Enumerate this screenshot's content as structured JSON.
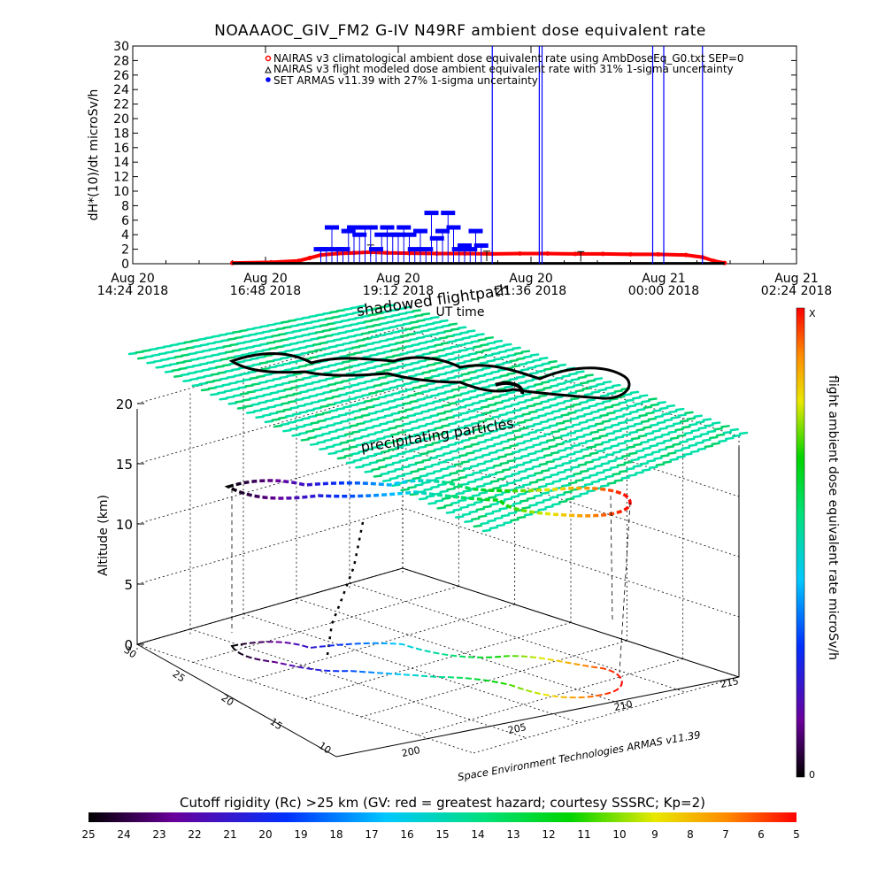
{
  "title": "NOAAAOC_GIV_FM2 G-IV    N49RF  ambient dose equivalent rate",
  "colors": {
    "nairas_clim": "#ff0000",
    "nairas_flight": "#000000",
    "armas": "#0000ff",
    "cloud": "#00e0a8"
  },
  "chart_data": [
    {
      "type": "line",
      "ylabel": "dH*(10)/dt microSv/h",
      "xlabel": "UT time",
      "ylim": [
        0,
        30
      ],
      "yticks": [
        0,
        2,
        4,
        6,
        8,
        10,
        12,
        14,
        16,
        18,
        20,
        22,
        24,
        26,
        28,
        30
      ],
      "xlim": [
        0,
        12
      ],
      "xticks": [
        {
          "x": 0,
          "line1": "Aug 20",
          "line2": "14:24 2018"
        },
        {
          "x": 2.4,
          "line1": "Aug 20",
          "line2": "16:48 2018"
        },
        {
          "x": 4.8,
          "line1": "Aug 20",
          "line2": "19:12 2018"
        },
        {
          "x": 7.2,
          "line1": "Aug 20",
          "line2": "21:36 2018"
        },
        {
          "x": 9.6,
          "line1": "Aug 21",
          "line2": "00:00 2018"
        },
        {
          "x": 12,
          "line1": "Aug 21",
          "line2": "02:24 2018"
        }
      ],
      "legend": [
        "NAIRAS v3 climatological ambient dose equivalent rate using AmbDoseEq_G0.txt SEP=0",
        "NAIRAS v3 flight modeled dose ambient equivalent rate with 31% 1-sigma uncertainty",
        "SET ARMAS v11.39 with 27% 1-sigma uncertainty"
      ],
      "series": [
        {
          "values_x": [
            1.8,
            2.5,
            3.0,
            3.2,
            3.4,
            3.7,
            4.0,
            4.3,
            4.6,
            5.0,
            5.5,
            6.0,
            6.5,
            7.0,
            7.5,
            8.0,
            8.5,
            9.0,
            9.5,
            10.0,
            10.3,
            10.5,
            10.7
          ],
          "values_y": [
            0.1,
            0.2,
            0.4,
            0.8,
            1.2,
            1.4,
            1.5,
            1.6,
            1.5,
            1.45,
            1.4,
            1.4,
            1.35,
            1.4,
            1.4,
            1.35,
            1.35,
            1.3,
            1.3,
            1.2,
            0.9,
            0.4,
            0.1
          ]
        },
        {
          "values_x": [
            1.8,
            3.0,
            4.0,
            5.0,
            6.0,
            7.0,
            8.0,
            9.0,
            10.0,
            10.7
          ],
          "values_y": [
            0.05,
            0.05,
            0.05,
            0.05,
            0.05,
            0.05,
            0.05,
            0.05,
            0.05,
            0.05
          ],
          "error_x": [
            4.3,
            6.4,
            8.1
          ],
          "error_y": [
            1.6,
            0.95,
            0.9
          ]
        },
        {
          "values_x": [
            3.4,
            3.5,
            3.6,
            3.7,
            3.8,
            3.9,
            4.0,
            4.1,
            4.2,
            4.3,
            4.4,
            4.5,
            4.6,
            4.7,
            4.8,
            4.9,
            5.0,
            5.1,
            5.2,
            5.3,
            5.4,
            5.5,
            5.6,
            5.7,
            5.8,
            5.9,
            6.0,
            6.1,
            6.2,
            6.3
          ],
          "values_y": [
            2.0,
            2.0,
            5.0,
            2.0,
            2.0,
            4.5,
            5.0,
            4.0,
            5.0,
            5.0,
            2.0,
            4.0,
            5.0,
            4.0,
            4.0,
            5.0,
            4.0,
            2.0,
            4.5,
            2.0,
            7.0,
            3.5,
            4.5,
            7.0,
            5.0,
            2.0,
            2.5,
            2.0,
            4.5,
            2.5
          ],
          "spikes_x": [
            6.5,
            7.35,
            7.4,
            9.4,
            9.6,
            10.3
          ]
        }
      ]
    },
    {
      "type": "scatter",
      "ylabel": "Altitude (km)",
      "zticks": [
        "0",
        "5",
        "10",
        "15",
        "20"
      ],
      "lat_ticks": [
        "30",
        "25",
        "20",
        "15",
        "10"
      ],
      "lon_ticks": [
        "200",
        "205",
        "210",
        "215"
      ],
      "annotations": [
        "shadowed flightpath",
        "precipitating particles"
      ],
      "credit": "Space Environment Technologies ARMAS v11.39",
      "colorbar_label": "flight ambient dose equivalent rate microSv/h",
      "colorbar_top": "X",
      "colorbar_bottom": "0"
    }
  ],
  "rigidity_bar": {
    "label": "Cutoff rigidity (Rc) >25 km (GV: red = greatest hazard; courtesy SSSRC; Kp=2)",
    "ticks": [
      "25",
      "24",
      "23",
      "22",
      "21",
      "20",
      "19",
      "18",
      "17",
      "16",
      "15",
      "14",
      "13",
      "12",
      "11",
      "10",
      "9",
      "8",
      "7",
      "6",
      "5"
    ]
  }
}
